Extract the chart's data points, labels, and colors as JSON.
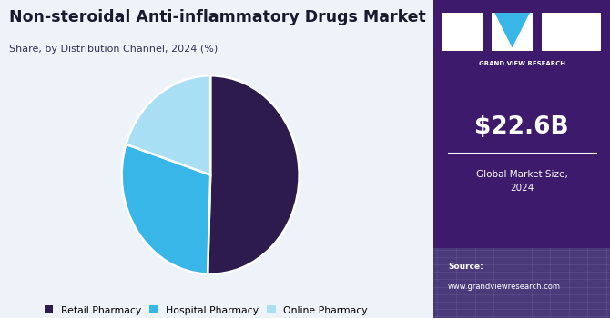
{
  "title": "Non-steroidal Anti-inflammatory Drugs Market",
  "subtitle": "Share, by Distribution Channel, 2024 (%)",
  "slices": [
    50.5,
    29.5,
    20.0
  ],
  "labels": [
    "Retail Pharmacy",
    "Hospital Pharmacy",
    "Online Pharmacy"
  ],
  "colors": [
    "#2d1b4e",
    "#38b6e8",
    "#a8dff5"
  ],
  "startangle": 90,
  "legend_labels": [
    "Retail Pharmacy",
    "Hospital Pharmacy",
    "Online Pharmacy"
  ],
  "sidebar_bg": "#3d1a6b",
  "sidebar_bottom_bg": "#5a4a8a",
  "market_size": "$22.6B",
  "market_label": "Global Market Size,\n2024",
  "source_label": "Source:",
  "source_url": "www.grandviewresearch.com",
  "main_bg": "#eef2f9",
  "title_color": "#1a1a2e",
  "subtitle_color": "#333355"
}
